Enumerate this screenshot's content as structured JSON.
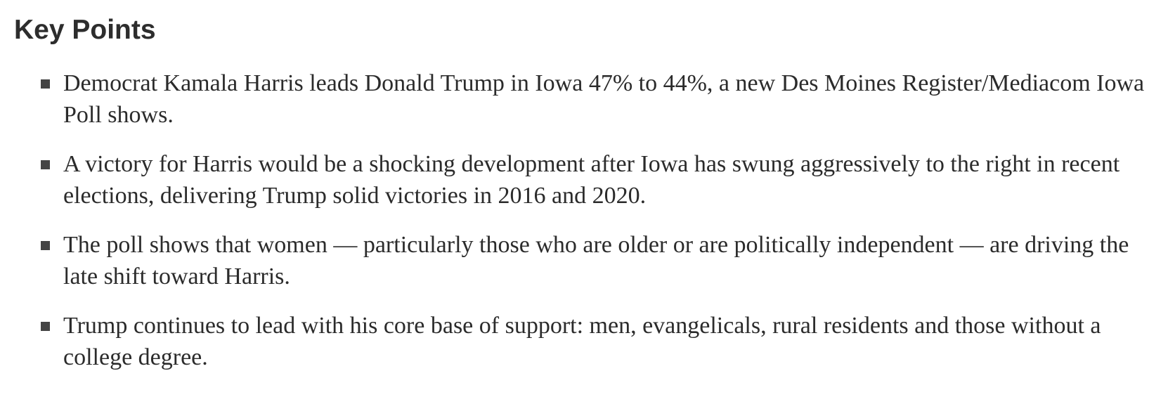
{
  "section": {
    "title": "Key Points"
  },
  "points": [
    {
      "text": "Democrat Kamala Harris leads Donald Trump in Iowa 47% to 44%, a new Des Moines Register/Mediacom Iowa Poll shows."
    },
    {
      "text": "A victory for Harris would be a shocking development after Iowa has swung aggressively to the right in recent elections, delivering Trump solid victories in 2016 and 2020."
    },
    {
      "text": "The poll shows that women — particularly those who are older or are politically independent — are driving the late shift toward Harris."
    },
    {
      "text": "Trump continues to lead with his core base of support: men, evangelicals, rural residents and those without a college degree."
    }
  ]
}
